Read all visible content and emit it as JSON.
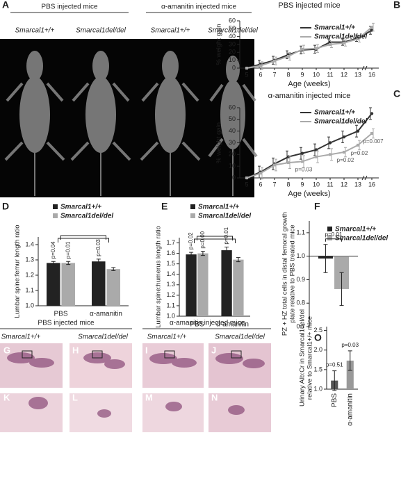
{
  "panel_letters": [
    "A",
    "B",
    "C",
    "D",
    "E",
    "F",
    "G",
    "H",
    "I",
    "J",
    "K",
    "L",
    "M",
    "N",
    "O"
  ],
  "panel_a": {
    "groups": [
      "PBS injected mice",
      "α-amanitin injected mice"
    ],
    "genotypes": [
      "Smarcal1+/+",
      "Smarcal1del/del",
      "Smarcal1+/+",
      "Smarcal1del/del"
    ]
  },
  "histology": {
    "groups": [
      "PBS injected mice",
      "α-amanitin injected mice"
    ],
    "genotypes": [
      "Smarcal1+/+",
      "Smarcal1del/del",
      "Smarcal1+/+",
      "Smarcal1del/del"
    ]
  },
  "chart_data": [
    {
      "type": "line",
      "title": "PBS injected mice",
      "xlabel": "Age (weeks)",
      "ylabel": "% weight gain",
      "categories": [
        "5",
        "6",
        "7",
        "8",
        "9",
        "10",
        "11",
        "12",
        "13",
        "16"
      ],
      "ylim": [
        0,
        60
      ],
      "yticks": [
        0,
        10,
        20,
        30,
        40,
        50,
        60
      ],
      "series": [
        {
          "name": "Smarcal1+/+",
          "color": "#333333",
          "values": [
            0,
            5,
            10,
            17,
            23,
            24,
            33,
            33,
            38,
            48
          ],
          "errors": [
            0,
            5,
            5,
            5,
            5,
            5,
            4,
            4,
            4,
            5
          ]
        },
        {
          "name": "Smarcal1del/del",
          "color": "#aaaaaa",
          "values": [
            0,
            3,
            9,
            15,
            24,
            25,
            30,
            32,
            37,
            52
          ],
          "errors": [
            0,
            5,
            5,
            5,
            5,
            5,
            4,
            4,
            4,
            5
          ]
        }
      ]
    },
    {
      "type": "line",
      "title": "α-amanitin injected mice",
      "xlabel": "Age (weeks)",
      "ylabel": "% weight gain",
      "categories": [
        "5",
        "6",
        "7",
        "8",
        "9",
        "10",
        "11",
        "12",
        "13",
        "16"
      ],
      "ylim": [
        0,
        60
      ],
      "yticks": [
        0,
        10,
        20,
        30,
        40,
        50,
        60
      ],
      "p_labels": [
        null,
        null,
        null,
        null,
        "p=0.03",
        null,
        null,
        "p=0.02",
        "p=0.02",
        "p=0.007"
      ],
      "series": [
        {
          "name": "Smarcal1+/+",
          "color": "#333333",
          "values": [
            0,
            5,
            12,
            18,
            21,
            24,
            30,
            35,
            40,
            55
          ],
          "errors": [
            0,
            5,
            5,
            5,
            5,
            5,
            5,
            5,
            5,
            5
          ]
        },
        {
          "name": "Smarcal1del/del",
          "color": "#aaaaaa",
          "values": [
            0,
            4,
            11,
            13,
            14,
            18,
            20,
            22,
            28,
            38
          ],
          "errors": [
            0,
            5,
            5,
            5,
            5,
            5,
            5,
            4,
            4,
            4
          ]
        }
      ]
    },
    {
      "type": "bar",
      "ylabel": "Lumbar spine:femur length ratio",
      "categories": [
        "PBS",
        "α-amanitin"
      ],
      "ylim": [
        1.0,
        1.45
      ],
      "yticks": [
        {
          "value": 1.0,
          "label": "1.0"
        },
        1.1,
        1.2,
        1.3,
        1.4
      ],
      "series": [
        {
          "name": "Smarcal1+/+",
          "color": "#222222",
          "values": [
            1.28,
            1.29
          ],
          "errors": [
            0.01,
            0.015
          ],
          "p_labels": [
            "p=0.04",
            "p=0.03"
          ]
        },
        {
          "name": "Smarcal1del/del",
          "color": "#aaaaaa",
          "values": [
            1.28,
            1.24
          ],
          "errors": [
            0.01,
            0.01
          ],
          "p_labels": [
            "p=0.01",
            null
          ]
        }
      ]
    },
    {
      "type": "bar",
      "ylabel": "Lumbar spine:humerus length ratio",
      "categories": [
        "PBS",
        "α-amanitin"
      ],
      "ylim": [
        1.0,
        1.75
      ],
      "yticks": [
        {
          "value": 1.0,
          "label": "1.0"
        },
        1.1,
        1.2,
        1.3,
        1.4,
        1.5,
        1.6,
        1.7
      ],
      "series": [
        {
          "name": "Smarcal1+/+",
          "color": "#222222",
          "values": [
            1.59,
            1.63
          ],
          "errors": [
            0.02,
            0.03
          ],
          "p_labels": [
            "p=0.02",
            "p=0.01"
          ]
        },
        {
          "name": "Smarcal1del/del",
          "color": "#aaaaaa",
          "values": [
            1.6,
            1.54
          ],
          "errors": [
            0.02,
            0.02
          ],
          "p_labels": [
            "p=0.00",
            null
          ]
        }
      ]
    },
    {
      "type": "bar",
      "ylabel": [
        "PZ + HZ total cells in distal femoral growth",
        "plate relative to PBS treated mice"
      ],
      "categories": [
        null
      ],
      "bar_base": 1,
      "annotation": "p=0.01",
      "ylim": [
        0.7,
        1.15
      ],
      "yticks": [
        0.7,
        0.8,
        0.9,
        {
          "value": 1.0,
          "label": "1.0"
        },
        1.1
      ],
      "series": [
        {
          "name": "Smarcal1+/+",
          "color": "#222222",
          "values": [
            0.99
          ],
          "errors": [
            0.06
          ]
        },
        {
          "name": "Smarcal1del/del",
          "color": "#aaaaaa",
          "values": [
            0.86
          ],
          "errors": [
            0.07
          ]
        }
      ]
    },
    {
      "type": "bar",
      "ylabel": [
        "Urinary Alb:Cr in Smarcal1del/del",
        "relative to Smarcal1+/+ mice"
      ],
      "categories": [
        "PBS",
        "α-amanitin"
      ],
      "bar_base": 1,
      "rotate_xticks": true,
      "ylim": [
        1.0,
        2.6
      ],
      "yticks": [
        {
          "value": 1.0,
          "label": "1.0"
        },
        1.5,
        {
          "value": 2.0,
          "label": "2.0"
        },
        2.5
      ],
      "series": [
        {
          "colors": [
            "#555555",
            "#999999"
          ],
          "values": [
            1.22,
            1.73
          ],
          "errors": [
            0.25,
            0.25
          ],
          "p_labels": [
            "p=0.51",
            "p=0.03"
          ]
        }
      ]
    }
  ]
}
